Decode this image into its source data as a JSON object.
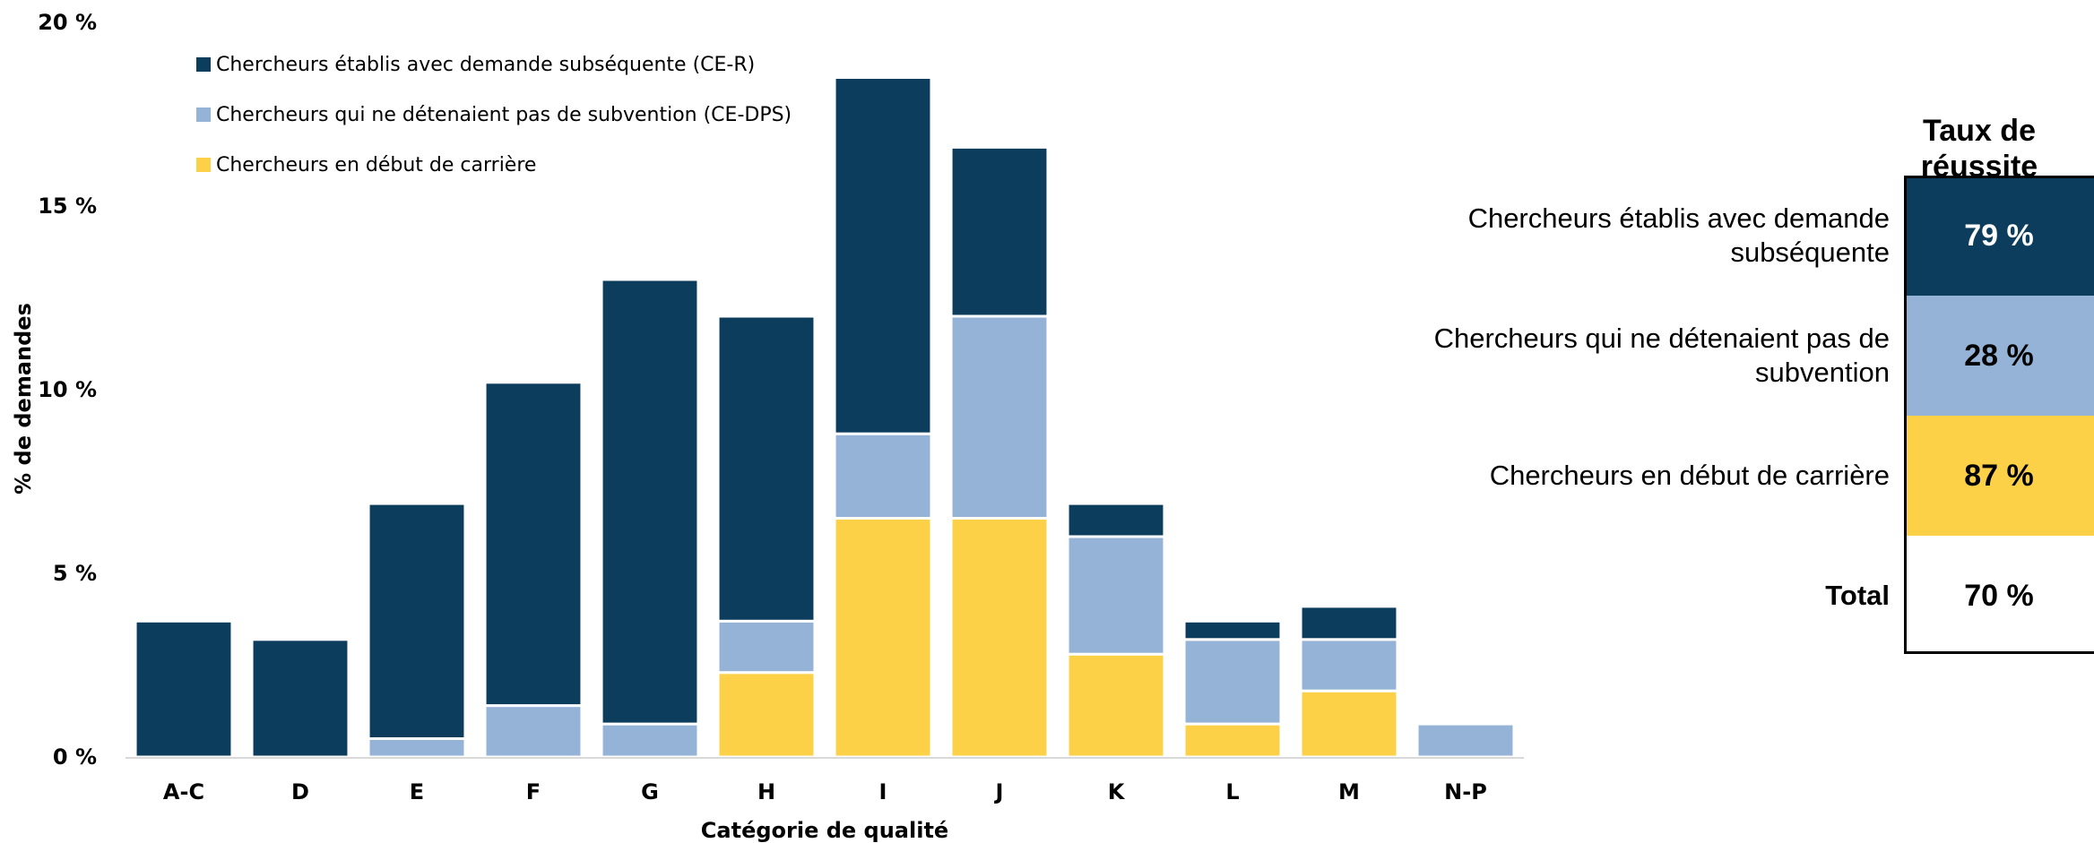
{
  "chart_data": {
    "type": "bar",
    "stacked": true,
    "categories": [
      "A-C",
      "D",
      "E",
      "F",
      "G",
      "H",
      "I",
      "J",
      "K",
      "L",
      "M",
      "N-P"
    ],
    "series": [
      {
        "name": "Chercheurs en début de carrière",
        "color": "#FDD147",
        "values": [
          0,
          0,
          0,
          0,
          0,
          2.3,
          6.5,
          6.5,
          2.8,
          0.9,
          1.8,
          0
        ]
      },
      {
        "name": "Chercheurs qui ne détenaient pas de subvention (CE-DPS)",
        "color": "#95B3D7",
        "values": [
          0,
          0,
          0.5,
          1.4,
          0.9,
          1.4,
          2.3,
          5.5,
          3.2,
          2.3,
          1.4,
          0.9
        ]
      },
      {
        "name": "Chercheurs établis avec demande subséquente (CE-R)",
        "color": "#0D3D5C",
        "values": [
          3.7,
          3.2,
          6.4,
          8.8,
          12.1,
          8.3,
          9.7,
          4.6,
          0.9,
          0.5,
          0.9,
          0
        ]
      }
    ],
    "legend_order": [
      2,
      1,
      0
    ],
    "legend_position": "top-left",
    "ylim": [
      0,
      20
    ],
    "yticks": [
      0,
      5,
      10,
      15,
      20
    ],
    "ytick_labels": [
      "0 %",
      "5 %",
      "10 %",
      "15 %",
      "20 %"
    ],
    "xlabel": "Catégorie de qualité",
    "ylabel": "% de demandes",
    "grid": false
  },
  "success_rates": {
    "header": "Taux de réussite",
    "rows": [
      {
        "label": "Chercheurs établis avec demande subséquente",
        "value": "79 %",
        "color": "#0D3D5C",
        "text_color": "#FFFFFF"
      },
      {
        "label": "Chercheurs qui ne détenaient pas de subvention",
        "value": "28 %",
        "color": "#95B3D7",
        "text_color": "#000000"
      },
      {
        "label": "Chercheurs en début de carrière",
        "value": "87 %",
        "color": "#FDD147",
        "text_color": "#000000"
      },
      {
        "label": "Total",
        "value": "70 %",
        "color": "#FFFFFF",
        "text_color": "#000000"
      }
    ]
  }
}
